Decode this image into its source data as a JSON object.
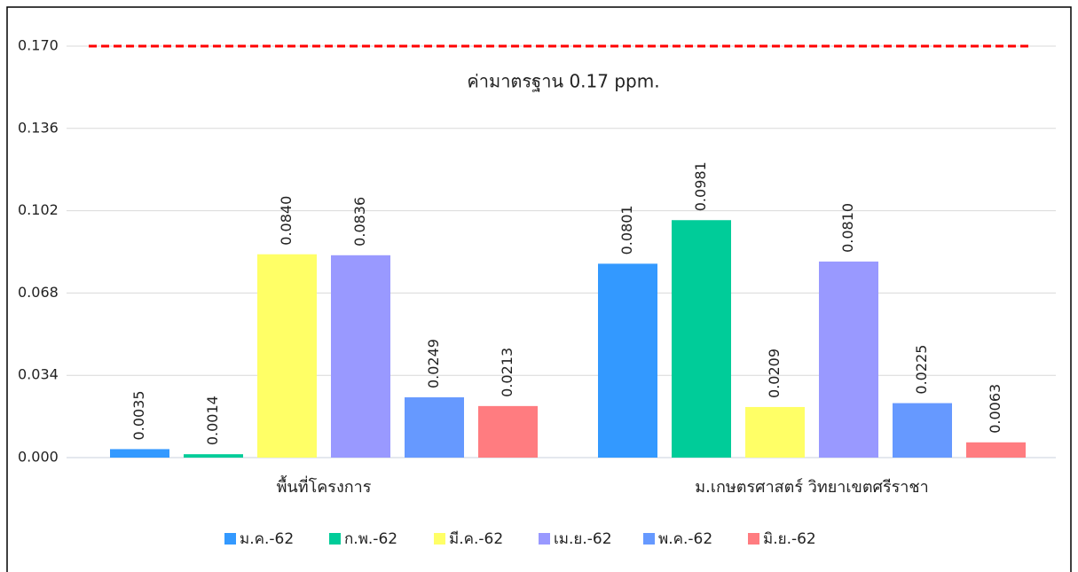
{
  "chart_data": {
    "type": "bar",
    "categories": [
      "พื้นที่โครงการ",
      "ม.เกษตรศาสตร์ วิทยาเขตศรีราชา"
    ],
    "series": [
      {
        "name": "ม.ค.-62",
        "color": "#3399ff",
        "values": [
          0.0035,
          0.0801
        ],
        "value_labels": [
          "0.0035",
          "0.0801"
        ]
      },
      {
        "name": "ก.พ.-62",
        "color": "#00cc99",
        "values": [
          0.0014,
          0.0981
        ],
        "value_labels": [
          "0.0014",
          "0.0981"
        ]
      },
      {
        "name": "มี.ค.-62",
        "color": "#ffff66",
        "values": [
          0.084,
          0.0209
        ],
        "value_labels": [
          "0.0840",
          "0.0209"
        ]
      },
      {
        "name": "เม.ย.-62",
        "color": "#9999ff",
        "values": [
          0.0836,
          0.081
        ],
        "value_labels": [
          "0.0836",
          "0.0810"
        ]
      },
      {
        "name": "พ.ค.-62",
        "color": "#6699ff",
        "values": [
          0.0249,
          0.0225
        ],
        "value_labels": [
          "0.0249",
          "0.0225"
        ]
      },
      {
        "name": "มิ.ย.-62",
        "color": "#ff7c80",
        "values": [
          0.0213,
          0.0063
        ],
        "value_labels": [
          "0.0213",
          "0.0063"
        ]
      }
    ],
    "ylim": [
      0,
      0.17
    ],
    "yticks": [
      {
        "value": 0,
        "label": "0.000"
      },
      0.034,
      0.068,
      0.102,
      0.136,
      {
        "value": 0.17,
        "label": "0.170"
      }
    ],
    "grid": true,
    "legend": "bottom",
    "reference_line": {
      "value": 0.17,
      "color": "#ff0000",
      "label": "ค่ามาตรฐาน 0.17  ppm."
    }
  }
}
